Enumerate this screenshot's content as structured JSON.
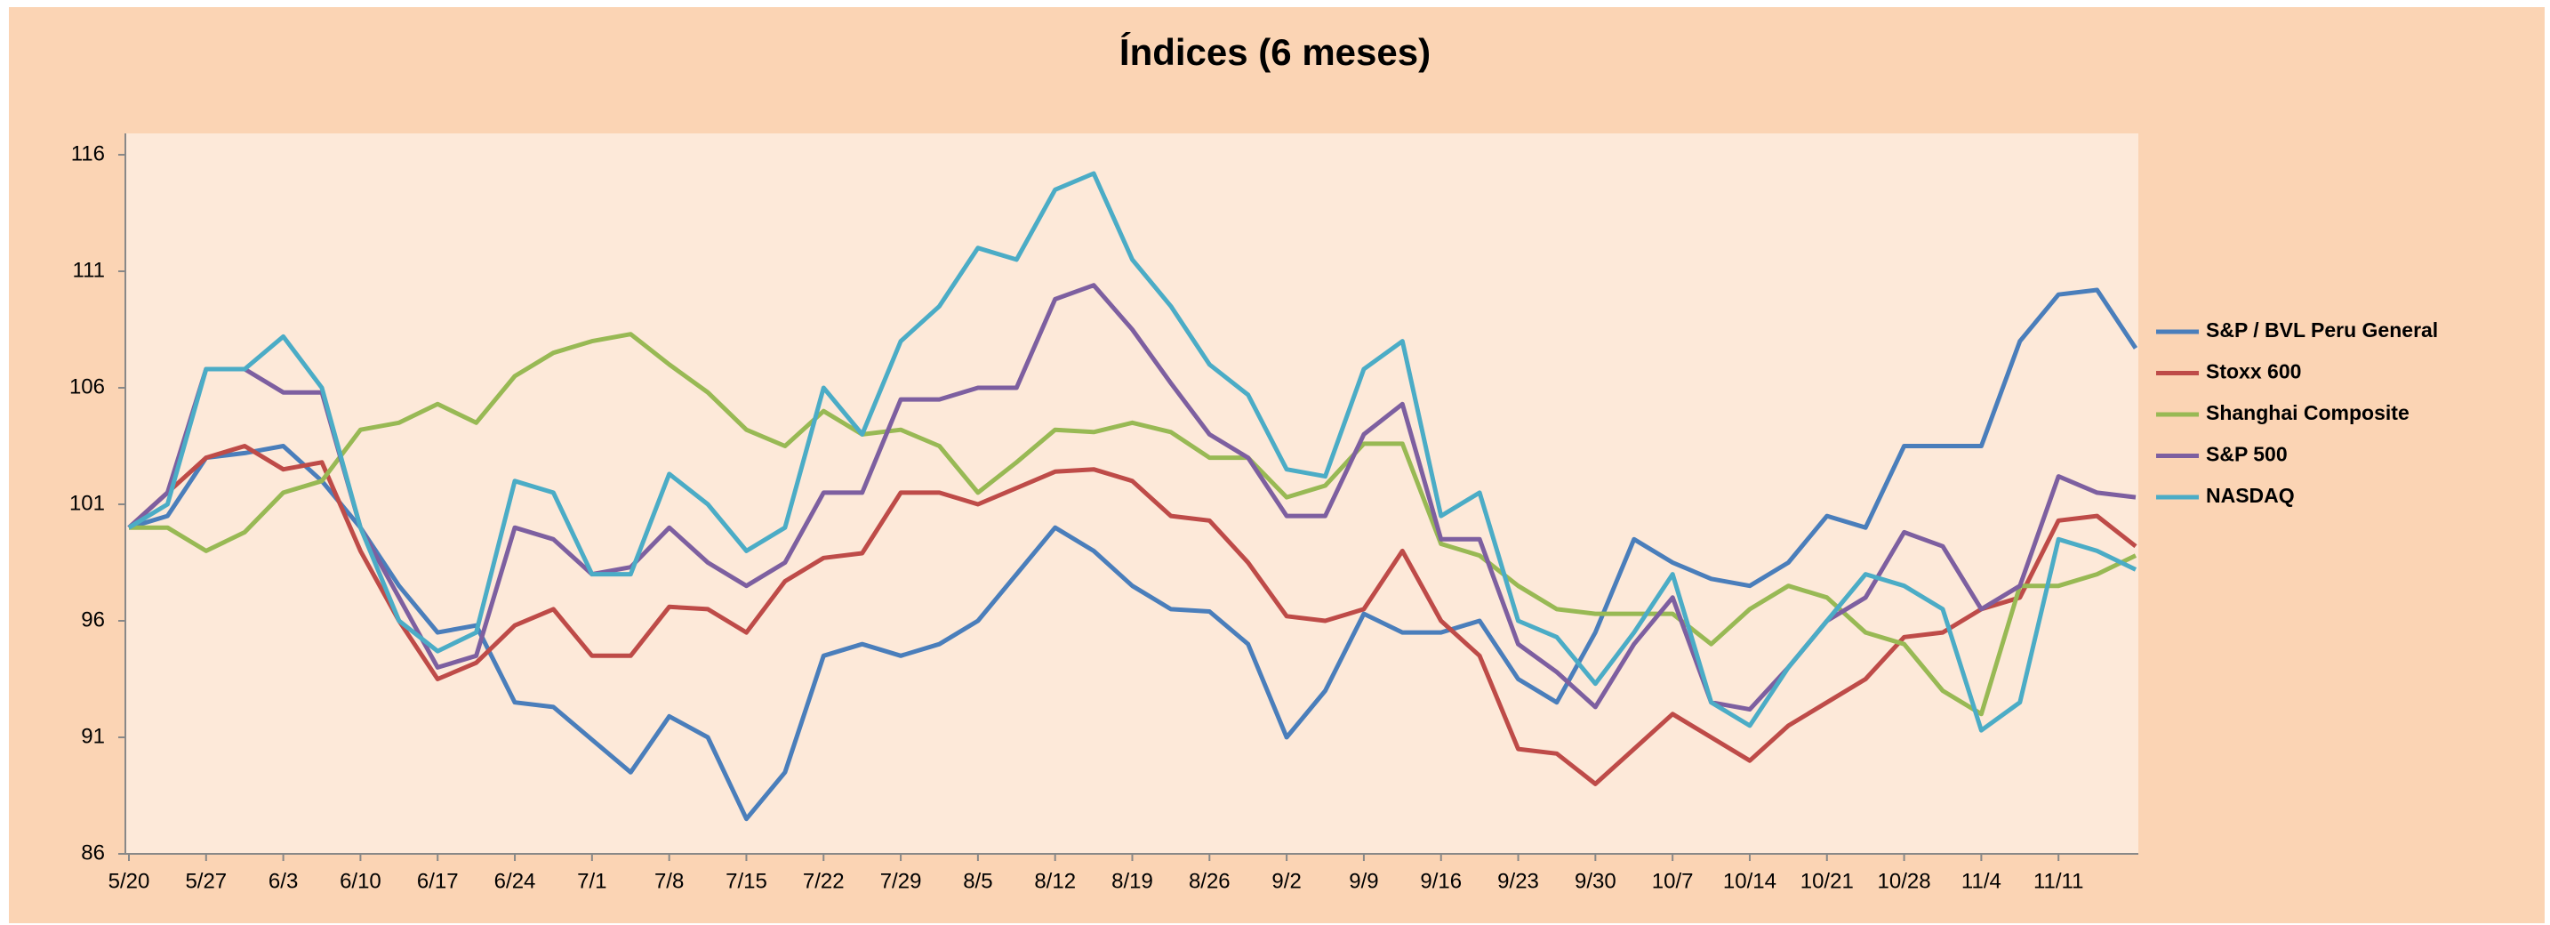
{
  "chart_data": {
    "type": "line",
    "title": "Índices (6 meses)",
    "categories": [
      "5/20",
      null,
      "5/27",
      null,
      "6/3",
      null,
      "6/10",
      null,
      "6/17",
      null,
      "6/24",
      null,
      "7/1",
      null,
      "7/8",
      null,
      "7/15",
      null,
      "7/22",
      null,
      "7/29",
      null,
      "8/5",
      null,
      "8/12",
      null,
      "8/19",
      null,
      "8/26",
      null,
      "9/2",
      null,
      "9/9",
      null,
      "9/16",
      null,
      "9/23",
      null,
      "9/30",
      null,
      "10/7",
      null,
      "10/14",
      null,
      "10/21",
      null,
      "10/28",
      null,
      "11/4",
      null,
      "11/11",
      null,
      null
    ],
    "ylim": [
      86,
      116
    ],
    "yticks": [
      86,
      91,
      96,
      101,
      106,
      111,
      116
    ],
    "grid": false,
    "legend": "right",
    "series": [
      {
        "name": "S&P / BVL Peru General",
        "color": "#4a7ebb",
        "values": [
          100,
          100.5,
          103,
          103.2,
          103.5,
          102,
          100,
          97.5,
          95.5,
          95.8,
          92.5,
          92.3,
          90.9,
          89.5,
          91.9,
          91,
          87.5,
          89.5,
          94.5,
          95,
          94.5,
          95,
          96,
          98,
          100,
          99,
          97.5,
          96.5,
          96.4,
          95,
          91,
          93,
          96.3,
          95.5,
          95.5,
          96,
          93.5,
          92.5,
          95.5,
          99.5,
          98.5,
          97.8,
          97.5,
          98.5,
          100.5,
          100,
          103.5,
          103.5,
          103.5,
          108,
          110,
          110.2,
          107.7
        ]
      },
      {
        "name": "Stoxx 600",
        "color": "#be4b48",
        "values": [
          100,
          101.5,
          103,
          103.5,
          102.5,
          102.8,
          99,
          96,
          93.5,
          94.2,
          95.8,
          96.5,
          94.5,
          94.5,
          96.6,
          96.5,
          95.5,
          97.7,
          98.7,
          98.9,
          101.5,
          101.5,
          101,
          101.7,
          102.4,
          102.5,
          102,
          100.5,
          100.3,
          98.5,
          96.2,
          96,
          96.5,
          99,
          96,
          94.5,
          90.5,
          90.3,
          89,
          90.5,
          92,
          91,
          90,
          91.5,
          92.5,
          93.5,
          95.3,
          95.5,
          96.5,
          97,
          100.3,
          100.5,
          99.2
        ]
      },
      {
        "name": "Shanghai Composite",
        "color": "#98b954",
        "values": [
          100,
          100,
          99,
          99.8,
          101.5,
          102,
          104.2,
          104.5,
          105.3,
          104.5,
          106.5,
          107.5,
          108,
          108.3,
          107,
          105.8,
          104.2,
          103.5,
          105,
          104,
          104.2,
          103.5,
          101.5,
          102.8,
          104.2,
          104.1,
          104.5,
          104.1,
          103,
          103,
          101.3,
          101.8,
          103.6,
          103.6,
          99.3,
          98.8,
          97.5,
          96.5,
          96.3,
          96.3,
          96.3,
          95,
          96.5,
          97.5,
          97,
          95.5,
          95,
          93,
          92,
          97.5,
          97.5,
          98,
          98.8
        ]
      },
      {
        "name": "S&P 500",
        "color": "#7d5fa0",
        "values": [
          100,
          101.5,
          106.8,
          106.8,
          105.8,
          105.8,
          100,
          97,
          94,
          94.5,
          100,
          99.5,
          98,
          98.3,
          100,
          98.5,
          97.5,
          98.5,
          101.5,
          101.5,
          105.5,
          105.5,
          106,
          106,
          109.8,
          110.4,
          108.5,
          106.2,
          104,
          103,
          100.5,
          100.5,
          104,
          105.3,
          99.5,
          99.5,
          95,
          93.8,
          92.3,
          95,
          97,
          92.5,
          92.2,
          94,
          96,
          97,
          99.8,
          99.2,
          96.5,
          97.5,
          102.2,
          101.5,
          101.3
        ]
      },
      {
        "name": "NASDAQ",
        "color": "#4bacc6",
        "values": [
          100,
          101,
          106.8,
          106.8,
          108.2,
          106,
          100,
          96,
          94.7,
          95.5,
          102,
          101.5,
          98,
          98,
          102.3,
          101,
          99,
          100,
          106,
          104,
          108,
          109.5,
          112,
          111.5,
          114.5,
          115.2,
          111.5,
          109.5,
          107,
          105.7,
          102.5,
          102.2,
          106.8,
          108,
          100.5,
          101.5,
          96,
          95.3,
          93.3,
          95.5,
          98,
          92.5,
          91.5,
          94,
          96,
          98,
          97.5,
          96.5,
          91.3,
          92.5,
          99.5,
          99,
          98.2
        ]
      }
    ]
  }
}
